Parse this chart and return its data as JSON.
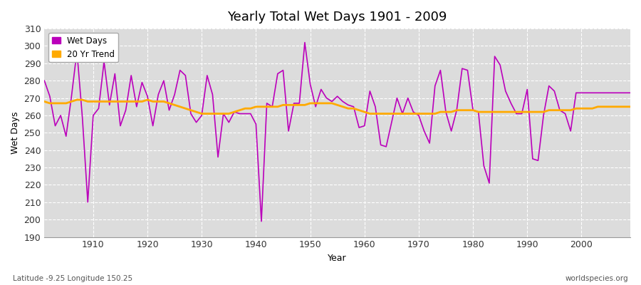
{
  "title": "Yearly Total Wet Days 1901 - 2009",
  "xlabel": "Year",
  "ylabel": "Wet Days",
  "fig_bg_color": "#ffffff",
  "plot_bg_color": "#dcdcdc",
  "wet_days_color": "#bb00bb",
  "trend_color": "#ffaa00",
  "ylim": [
    190,
    310
  ],
  "yticks": [
    190,
    200,
    210,
    220,
    230,
    240,
    250,
    260,
    270,
    280,
    290,
    300,
    310
  ],
  "xlim": [
    1901,
    2009
  ],
  "xticks": [
    1910,
    1920,
    1930,
    1940,
    1950,
    1960,
    1970,
    1980,
    1990,
    2000
  ],
  "subtitle_left": "Latitude -9.25 Longitude 150.25",
  "subtitle_right": "worldspecies.org",
  "wet_days": {
    "1901": 280,
    "1902": 271,
    "1903": 254,
    "1904": 260,
    "1905": 248,
    "1906": 271,
    "1907": 297,
    "1908": 259,
    "1909": 210,
    "1910": 260,
    "1911": 264,
    "1912": 291,
    "1913": 266,
    "1914": 284,
    "1915": 254,
    "1916": 263,
    "1917": 283,
    "1918": 265,
    "1919": 279,
    "1920": 271,
    "1921": 254,
    "1922": 272,
    "1923": 280,
    "1924": 263,
    "1925": 272,
    "1926": 286,
    "1927": 283,
    "1928": 261,
    "1929": 256,
    "1930": 260,
    "1931": 283,
    "1932": 272,
    "1933": 236,
    "1934": 261,
    "1935": 256,
    "1936": 262,
    "1937": 261,
    "1938": 261,
    "1939": 261,
    "1940": 255,
    "1941": 199,
    "1942": 267,
    "1943": 265,
    "1944": 284,
    "1945": 286,
    "1946": 251,
    "1947": 267,
    "1948": 267,
    "1949": 302,
    "1950": 278,
    "1951": 265,
    "1952": 275,
    "1953": 270,
    "1954": 268,
    "1955": 271,
    "1956": 268,
    "1957": 266,
    "1958": 265,
    "1959": 253,
    "1960": 254,
    "1961": 274,
    "1962": 265,
    "1963": 243,
    "1964": 242,
    "1965": 256,
    "1966": 270,
    "1967": 261,
    "1968": 270,
    "1969": 262,
    "1970": 260,
    "1971": 251,
    "1972": 244,
    "1973": 277,
    "1974": 286,
    "1975": 262,
    "1976": 251,
    "1977": 263,
    "1978": 287,
    "1979": 286,
    "1980": 263,
    "1981": 262,
    "1982": 231,
    "1983": 221,
    "1984": 294,
    "1985": 289,
    "1986": 274,
    "1987": 267,
    "1988": 261,
    "1989": 261,
    "1990": 275,
    "1991": 235,
    "1992": 234,
    "1993": 260,
    "1994": 277,
    "1995": 274,
    "1996": 263,
    "1997": 261,
    "1998": 251,
    "1999": 273,
    "2000": 273,
    "2001": 273,
    "2002": 273,
    "2003": 273,
    "2004": 273,
    "2005": 273,
    "2006": 273,
    "2007": 273,
    "2008": 273,
    "2009": 273
  },
  "trend": {
    "1901": 268,
    "1902": 267,
    "1903": 267,
    "1904": 267,
    "1905": 267,
    "1906": 268,
    "1907": 269,
    "1908": 269,
    "1909": 268,
    "1910": 268,
    "1911": 268,
    "1912": 268,
    "1913": 268,
    "1914": 268,
    "1915": 268,
    "1916": 268,
    "1917": 268,
    "1918": 268,
    "1919": 268,
    "1920": 269,
    "1921": 268,
    "1922": 268,
    "1923": 268,
    "1924": 267,
    "1925": 266,
    "1926": 265,
    "1927": 264,
    "1928": 263,
    "1929": 262,
    "1930": 261,
    "1931": 261,
    "1932": 261,
    "1933": 261,
    "1934": 261,
    "1935": 261,
    "1936": 262,
    "1937": 263,
    "1938": 264,
    "1939": 264,
    "1940": 265,
    "1941": 265,
    "1942": 265,
    "1943": 265,
    "1944": 265,
    "1945": 266,
    "1946": 266,
    "1947": 266,
    "1948": 266,
    "1949": 266,
    "1950": 267,
    "1951": 267,
    "1952": 267,
    "1953": 267,
    "1954": 267,
    "1955": 266,
    "1956": 265,
    "1957": 264,
    "1958": 264,
    "1959": 263,
    "1960": 262,
    "1961": 261,
    "1962": 261,
    "1963": 261,
    "1964": 261,
    "1965": 261,
    "1966": 261,
    "1967": 261,
    "1968": 261,
    "1969": 261,
    "1970": 261,
    "1971": 261,
    "1972": 261,
    "1973": 261,
    "1974": 262,
    "1975": 262,
    "1976": 262,
    "1977": 263,
    "1978": 263,
    "1979": 263,
    "1980": 263,
    "1981": 262,
    "1982": 262,
    "1983": 262,
    "1984": 262,
    "1985": 262,
    "1986": 262,
    "1987": 262,
    "1988": 262,
    "1989": 262,
    "1990": 262,
    "1991": 262,
    "1992": 262,
    "1993": 262,
    "1994": 263,
    "1995": 263,
    "1996": 263,
    "1997": 263,
    "1998": 263,
    "1999": 264,
    "2000": 264,
    "2001": 264,
    "2002": 264,
    "2003": 265,
    "2004": 265,
    "2005": 265,
    "2006": 265,
    "2007": 265,
    "2008": 265,
    "2009": 265
  }
}
